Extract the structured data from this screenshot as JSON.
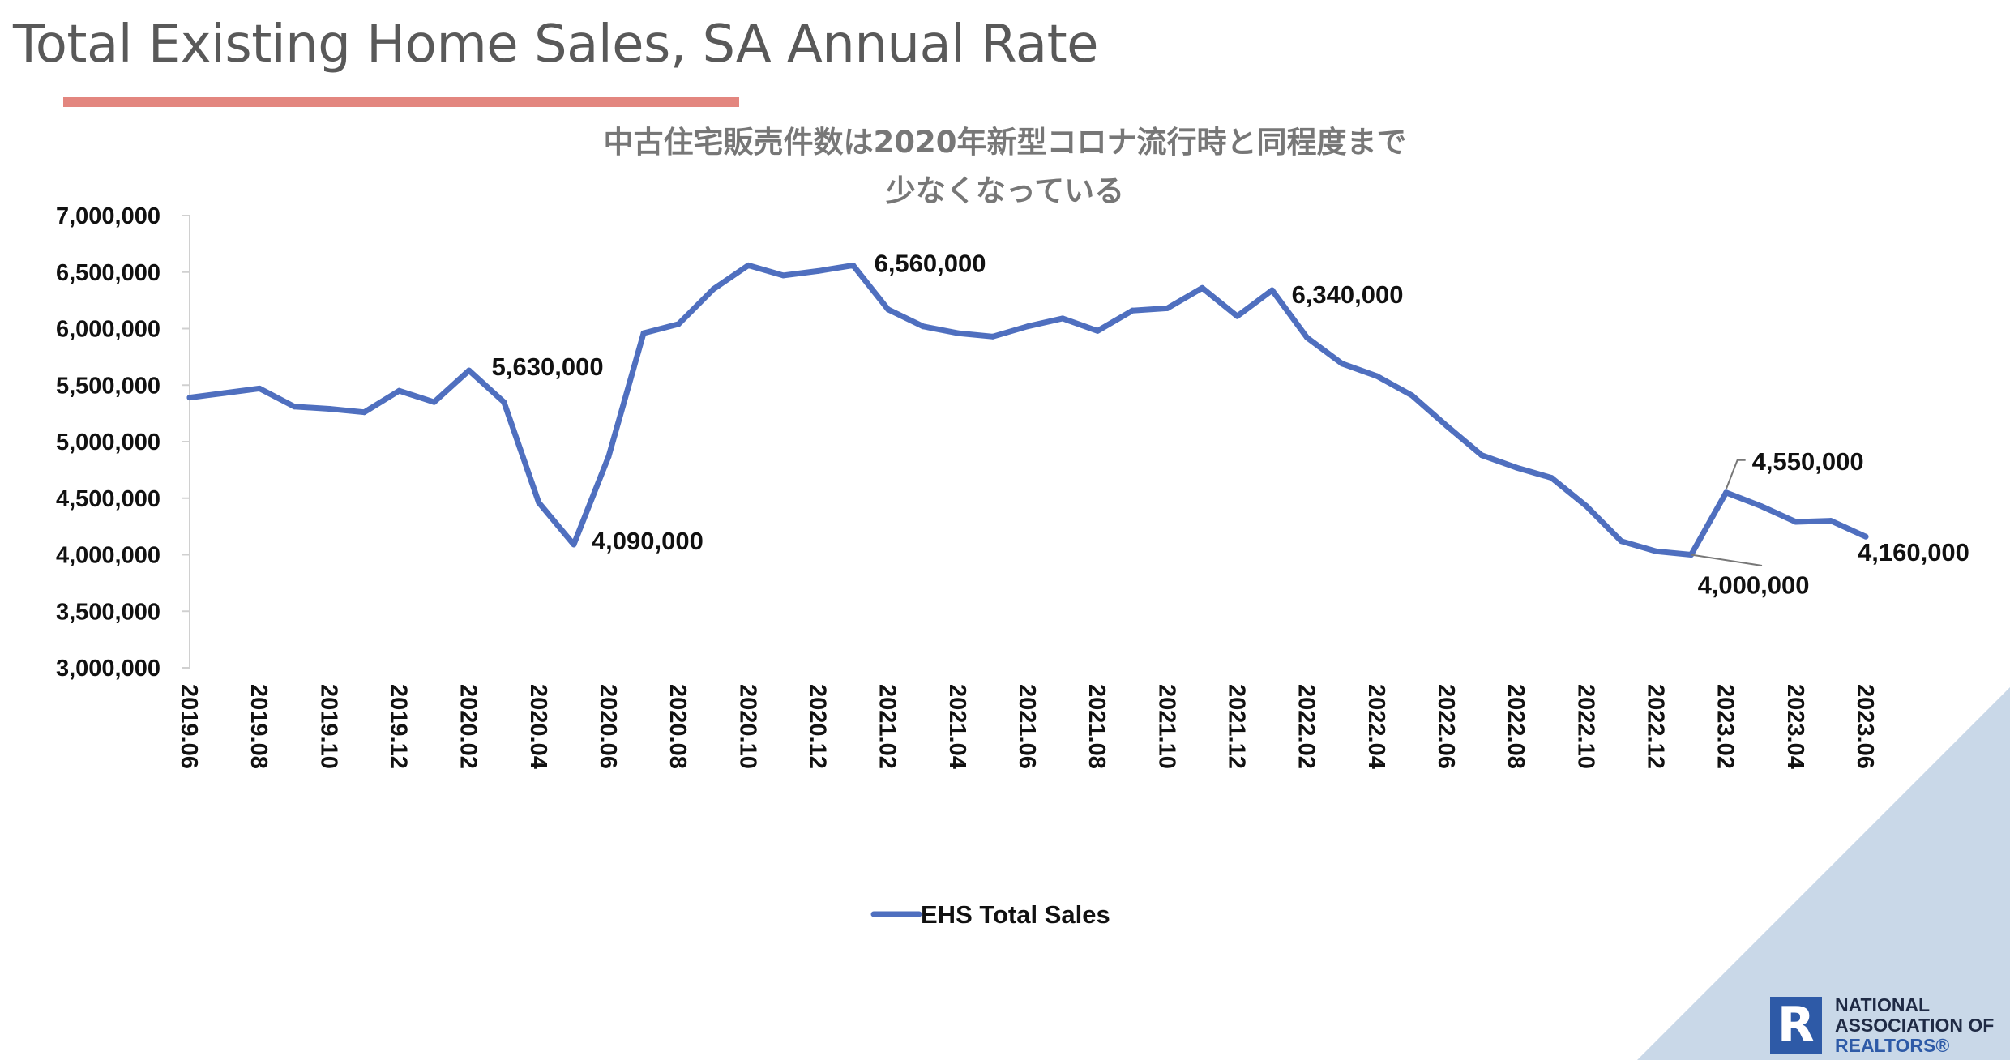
{
  "slide": {
    "title": "Total Existing Home Sales, SA Annual Rate",
    "accent_color": "#e3867f",
    "corner_color": "#c9d8e8"
  },
  "logo": {
    "icon": "realtor-r-icon",
    "mark": "R",
    "line1": "NATIONAL",
    "line2": "ASSOCIATION OF",
    "line3": "REALTORS®"
  },
  "chart_data": {
    "type": "line",
    "title_line1": "中古住宅販売件数は2020年新型コロナ流行時と同程度まで",
    "title_line2": "少なくなっている",
    "ylim": [
      3000000,
      7000000
    ],
    "y_ticks": [
      3000000,
      3500000,
      4000000,
      4500000,
      5000000,
      5500000,
      6000000,
      6500000,
      7000000
    ],
    "y_tick_labels": [
      "3,000,000",
      "3,500,000",
      "4,000,000",
      "4,500,000",
      "5,000,000",
      "5,500,000",
      "6,000,000",
      "6,500,000",
      "7,000,000"
    ],
    "x": [
      "2019.06",
      "2019.07",
      "2019.08",
      "2019.09",
      "2019.10",
      "2019.11",
      "2019.12",
      "2020.01",
      "2020.02",
      "2020.03",
      "2020.04",
      "2020.05",
      "2020.06",
      "2020.07",
      "2020.08",
      "2020.09",
      "2020.10",
      "2020.11",
      "2020.12",
      "2021.01",
      "2021.02",
      "2021.03",
      "2021.04",
      "2021.05",
      "2021.06",
      "2021.07",
      "2021.08",
      "2021.09",
      "2021.10",
      "2021.11",
      "2021.12",
      "2022.01",
      "2022.02",
      "2022.03",
      "2022.04",
      "2022.05",
      "2022.06",
      "2022.07",
      "2022.08",
      "2022.09",
      "2022.10",
      "2022.11",
      "2022.12",
      "2023.01",
      "2023.02",
      "2023.03",
      "2023.04",
      "2023.05",
      "2023.06"
    ],
    "x_tick_labels": [
      "2019.06",
      "2019.08",
      "2019.10",
      "2019.12",
      "2020.02",
      "2020.04",
      "2020.06",
      "2020.08",
      "2020.10",
      "2020.12",
      "2021.02",
      "2021.04",
      "2021.06",
      "2021.08",
      "2021.10",
      "2021.12",
      "2022.02",
      "2022.04",
      "2022.06",
      "2022.08",
      "2022.10",
      "2022.12",
      "2023.02",
      "2023.04",
      "2023.06"
    ],
    "series": [
      {
        "name": "EHS Total Sales",
        "color": "#4f6fbf",
        "values": [
          5390000,
          5430000,
          5470000,
          5310000,
          5290000,
          5260000,
          5450000,
          5350000,
          5630000,
          5350000,
          4460000,
          4090000,
          4870000,
          5960000,
          6040000,
          6350000,
          6560000,
          6470000,
          6510000,
          6560000,
          6170000,
          6020000,
          5960000,
          5930000,
          6020000,
          6090000,
          5980000,
          6160000,
          6180000,
          6360000,
          6110000,
          6340000,
          5920000,
          5690000,
          5580000,
          5410000,
          5140000,
          4880000,
          4770000,
          4680000,
          4430000,
          4120000,
          4030000,
          4000000,
          4550000,
          4430000,
          4290000,
          4300000,
          4160000
        ]
      }
    ],
    "annotations": [
      {
        "x": "2020.02",
        "value": 5630000,
        "label": "5,630,000"
      },
      {
        "x": "2020.05",
        "value": 4090000,
        "label": "4,090,000"
      },
      {
        "x": "2021.01",
        "value": 6560000,
        "label": "6,560,000"
      },
      {
        "x": "2022.01",
        "value": 6340000,
        "label": "6,340,000"
      },
      {
        "x": "2023.01",
        "value": 4000000,
        "label": "4,000,000"
      },
      {
        "x": "2023.02",
        "value": 4550000,
        "label": "4,550,000"
      },
      {
        "x": "2023.06",
        "value": 4160000,
        "label": "4,160,000"
      }
    ],
    "legend": {
      "position": "bottom",
      "label": "EHS Total Sales"
    },
    "grid": false
  }
}
